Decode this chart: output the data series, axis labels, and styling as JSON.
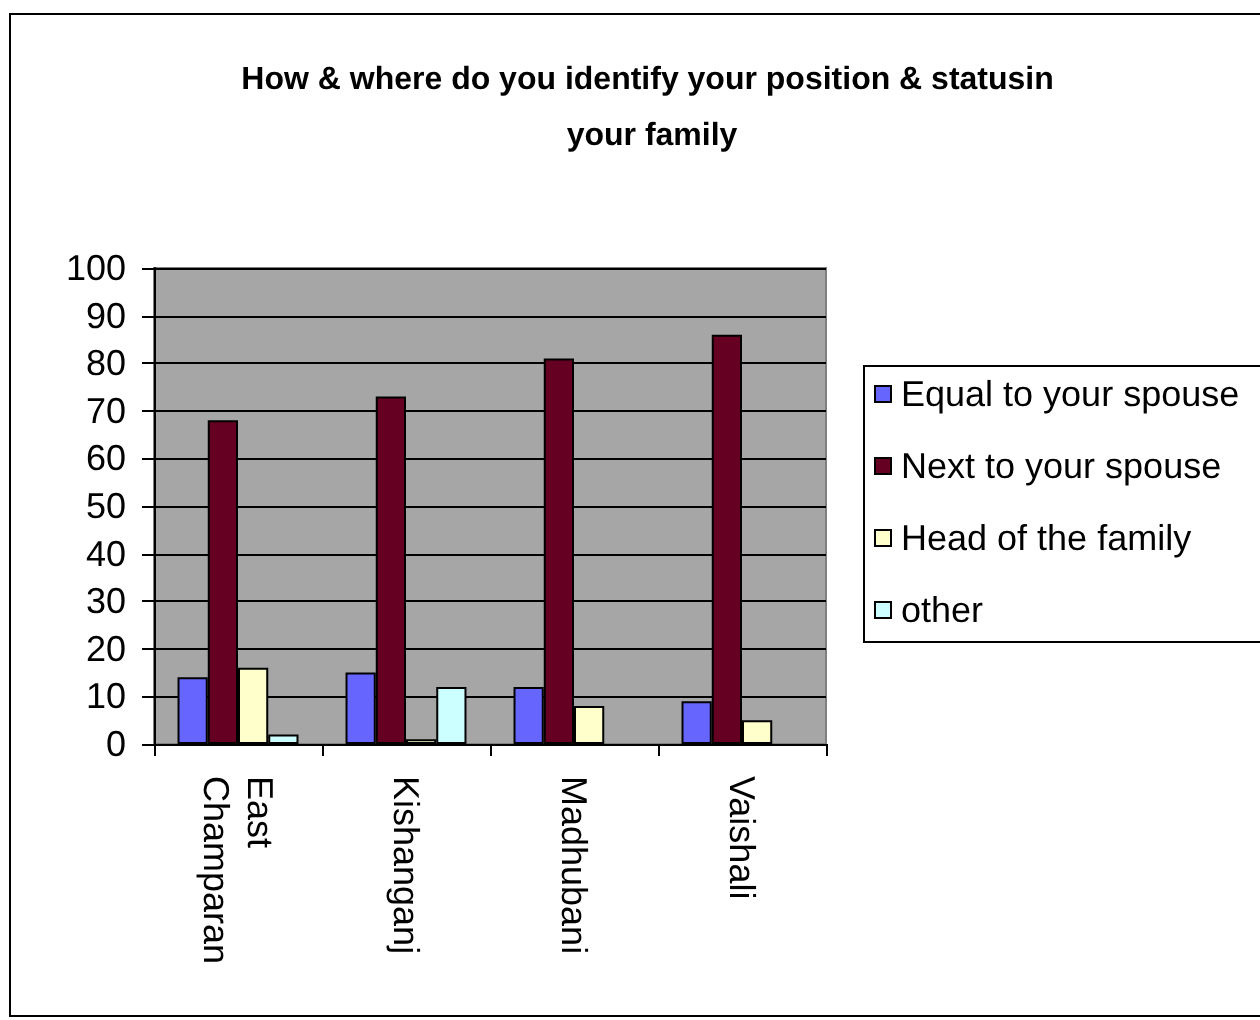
{
  "chart_data": {
    "type": "bar",
    "title": "How & where do you identify your position & statusin your family",
    "categories": [
      "East Champaran",
      "Kishanganj",
      "Madhubani",
      "Vaishali"
    ],
    "series": [
      {
        "name": "Equal to your spouse",
        "color": "#6666ff",
        "values": [
          14,
          15,
          12,
          9
        ]
      },
      {
        "name": "Next to your spouse",
        "color": "#660022",
        "values": [
          68,
          73,
          81,
          86
        ]
      },
      {
        "name": "Head of the family",
        "color": "#ffffcc",
        "values": [
          16,
          1,
          8,
          5
        ]
      },
      {
        "name": "other",
        "color": "#ccffff",
        "values": [
          2,
          12,
          null,
          null
        ]
      }
    ],
    "ylim": [
      0,
      100
    ],
    "yticks": [
      0,
      10,
      20,
      30,
      40,
      50,
      60,
      70,
      80,
      90,
      100
    ],
    "grid": "y",
    "legend": "right"
  }
}
